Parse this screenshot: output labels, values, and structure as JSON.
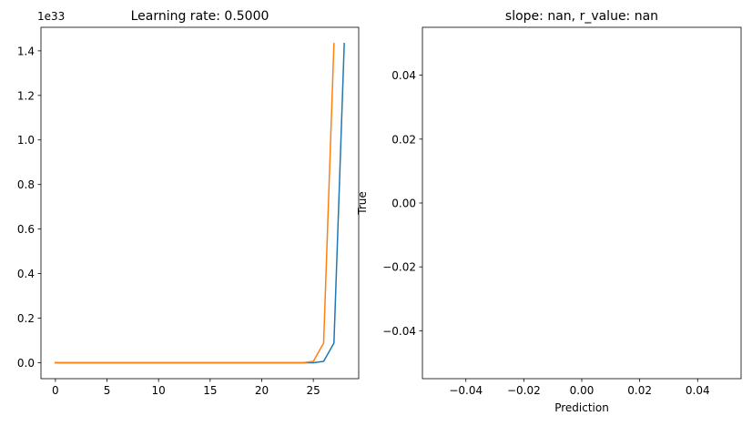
{
  "chart_data": [
    {
      "type": "line",
      "title": "Learning rate: 0.5000",
      "xlabel": "",
      "ylabel": "",
      "y_offset_text": "1e33",
      "y_unit": 1e+33,
      "xlim": [
        -1.4,
        29.4
      ],
      "ylim": [
        -0.0717,
        1.5057
      ],
      "xticks": [
        0,
        5,
        10,
        15,
        20,
        25
      ],
      "xtick_labels": [
        "0",
        "5",
        "10",
        "15",
        "20",
        "25"
      ],
      "yticks": [
        0.0,
        0.2,
        0.4,
        0.6,
        0.8,
        1.0,
        1.2,
        1.4
      ],
      "ytick_labels": [
        "0.0",
        "0.2",
        "0.4",
        "0.6",
        "0.8",
        "1.0",
        "1.2",
        "1.4"
      ],
      "grid": false,
      "series": [
        {
          "color": "#1f77b4",
          "x": [
            0,
            1,
            2,
            3,
            4,
            5,
            6,
            7,
            8,
            9,
            10,
            11,
            12,
            13,
            14,
            15,
            16,
            17,
            18,
            19,
            20,
            21,
            22,
            23,
            24,
            25,
            26,
            27,
            28
          ],
          "y": [
            0,
            0,
            0,
            0,
            0,
            0,
            0,
            0,
            0,
            0,
            0,
            0,
            0,
            0,
            0,
            0,
            0,
            0,
            0,
            0,
            0,
            0,
            0,
            0,
            0,
            0,
            0.006,
            0.088,
            1.433
          ]
        },
        {
          "color": "#ff7f0e",
          "x": [
            0,
            1,
            2,
            3,
            4,
            5,
            6,
            7,
            8,
            9,
            10,
            11,
            12,
            13,
            14,
            15,
            16,
            17,
            18,
            19,
            20,
            21,
            22,
            23,
            24,
            25,
            26,
            27
          ],
          "y": [
            0,
            0,
            0,
            0,
            0,
            0,
            0,
            0,
            0,
            0,
            0,
            0,
            0,
            0,
            0,
            0,
            0,
            0,
            0,
            0,
            0,
            0,
            0,
            0,
            0,
            0.006,
            0.088,
            1.433
          ]
        }
      ]
    },
    {
      "type": "scatter",
      "title": "slope: nan, r_value: nan",
      "xlabel": "Prediction",
      "ylabel": "True",
      "xlim": [
        -0.055,
        0.055
      ],
      "ylim": [
        -0.055,
        0.055
      ],
      "xticks": [
        -0.04,
        -0.02,
        0.0,
        0.02,
        0.04
      ],
      "xtick_labels": [
        "−0.04",
        "−0.02",
        "0.00",
        "0.02",
        "0.04"
      ],
      "yticks": [
        -0.04,
        -0.02,
        0.0,
        0.02,
        0.04
      ],
      "ytick_labels": [
        "−0.04",
        "−0.02",
        "0.00",
        "0.02",
        "0.04"
      ],
      "grid": false,
      "series": []
    }
  ]
}
